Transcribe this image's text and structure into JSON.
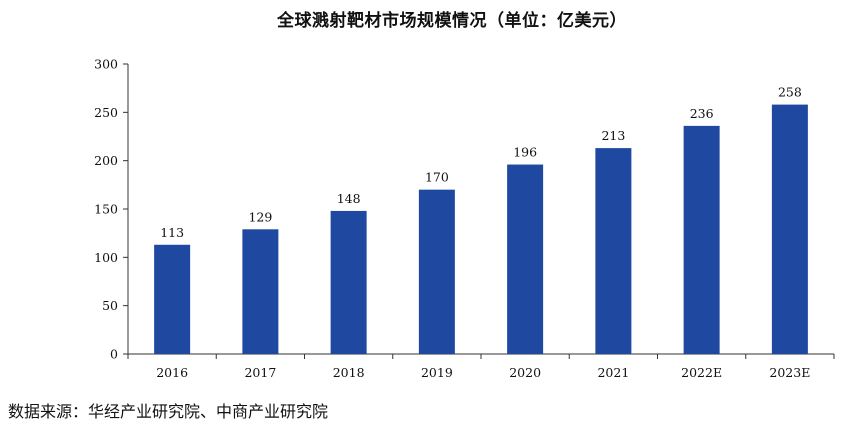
{
  "chart_data": {
    "type": "bar",
    "title": "全球溅射靶材市场规模情况（单位：亿美元）",
    "xlabel": "",
    "ylabel": "",
    "categories": [
      "2016",
      "2017",
      "2018",
      "2019",
      "2020",
      "2021",
      "2022E",
      "2023E"
    ],
    "values": [
      113,
      129,
      148,
      170,
      196,
      213,
      236,
      258
    ],
    "ylim": [
      0,
      300
    ],
    "yticks": [
      0,
      50,
      100,
      150,
      200,
      250,
      300
    ],
    "data_labels": true,
    "grid": false,
    "legend": "none",
    "bar_color": "#1F49A0"
  },
  "source": "数据来源：华经产业研究院、中商产业研究院"
}
